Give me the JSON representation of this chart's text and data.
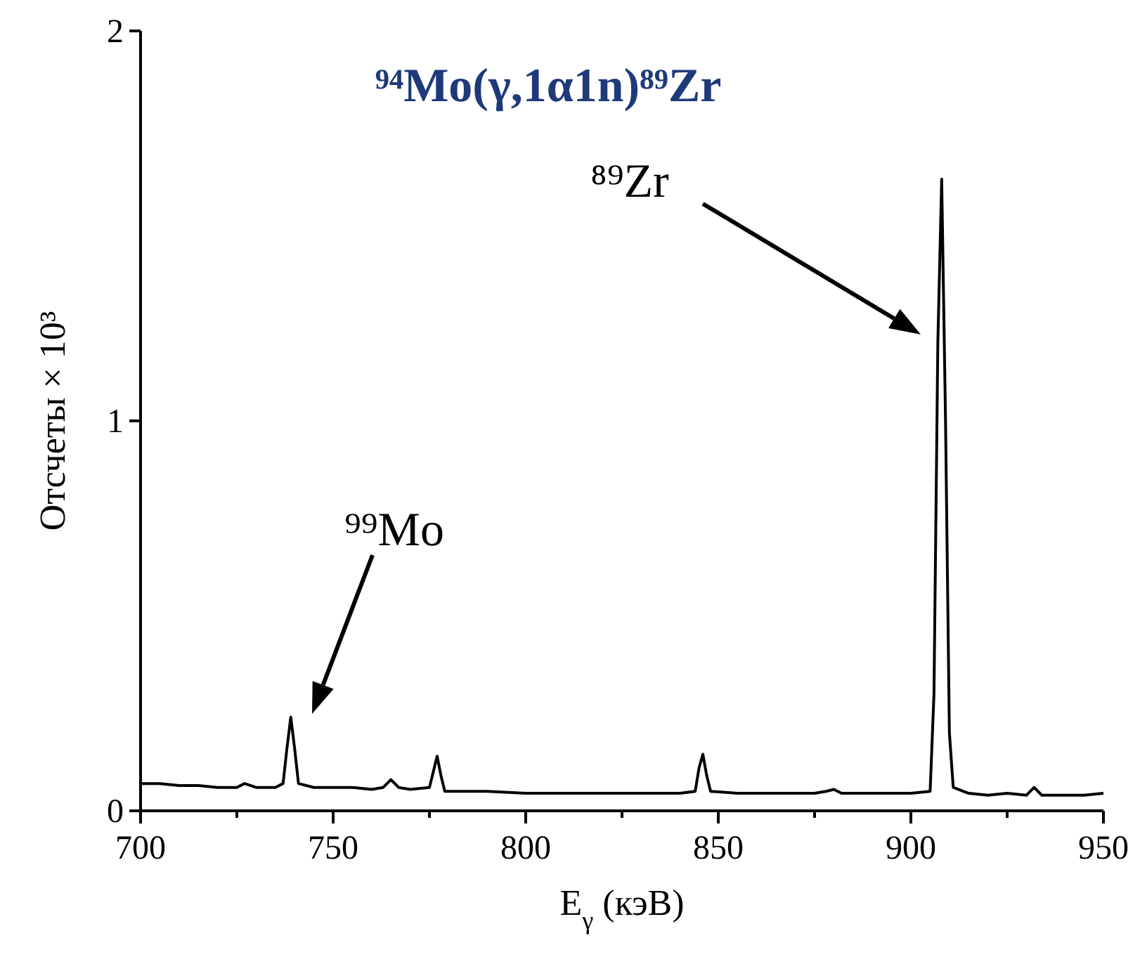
{
  "chart_data": {
    "type": "line",
    "title": "⁹⁴Mo(γ,1α1n)⁸⁹Zr",
    "xlabel": "E$_{γ}$ (кэВ)",
    "ylabel": "Отсчеты × 10³",
    "x": [
      700,
      705,
      710,
      715,
      720,
      725,
      727,
      730,
      735,
      737,
      738,
      739,
      740,
      741,
      745,
      750,
      755,
      760,
      763,
      765,
      767,
      770,
      775,
      776,
      777,
      778,
      779,
      785,
      790,
      800,
      810,
      820,
      830,
      840,
      844,
      845,
      846,
      847,
      848,
      855,
      865,
      875,
      878,
      880,
      882,
      890,
      900,
      905,
      906,
      907,
      908,
      909,
      910,
      911,
      915,
      920,
      925,
      930,
      932,
      934,
      940,
      945,
      950
    ],
    "series": [
      {
        "color": "#000000",
        "values": [
          0.07,
          0.07,
          0.065,
          0.065,
          0.06,
          0.06,
          0.07,
          0.06,
          0.06,
          0.07,
          0.16,
          0.24,
          0.16,
          0.07,
          0.06,
          0.06,
          0.06,
          0.055,
          0.06,
          0.08,
          0.06,
          0.055,
          0.06,
          0.1,
          0.14,
          0.09,
          0.05,
          0.05,
          0.05,
          0.045,
          0.045,
          0.045,
          0.045,
          0.045,
          0.05,
          0.11,
          0.145,
          0.09,
          0.05,
          0.045,
          0.045,
          0.045,
          0.05,
          0.055,
          0.045,
          0.045,
          0.045,
          0.05,
          0.3,
          1.2,
          1.62,
          1.0,
          0.2,
          0.06,
          0.045,
          0.04,
          0.045,
          0.04,
          0.06,
          0.04,
          0.04,
          0.04,
          0.045
        ]
      }
    ],
    "xlim": [
      700,
      950
    ],
    "xticks": [
      700,
      {
        "value": 725,
        "label": null
      },
      750,
      {
        "value": 775,
        "label": null
      },
      800,
      {
        "value": 825,
        "label": null
      },
      850,
      {
        "value": 875,
        "label": null
      },
      900,
      {
        "value": 925,
        "label": null
      },
      950
    ],
    "ylim": [
      0,
      2
    ],
    "yticks": [
      0,
      1,
      2
    ],
    "grid": false,
    "marker": "none",
    "line_style": "solid",
    "annotations": [
      "⁹⁹Mo",
      "⁸⁹Zr"
    ]
  }
}
